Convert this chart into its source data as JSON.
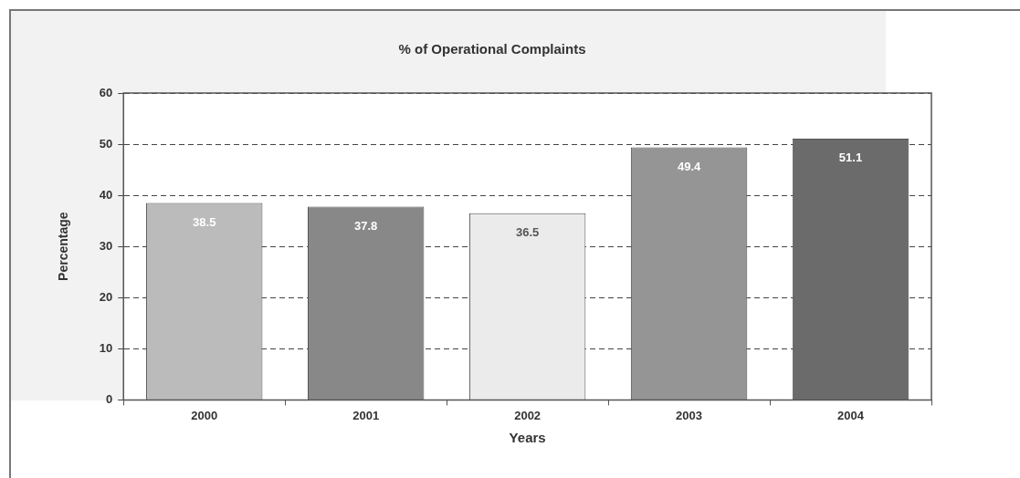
{
  "chart_data": {
    "type": "bar",
    "title": "% of Operational Complaints",
    "xlabel": "Years",
    "ylabel": "Percentage",
    "categories": [
      "2000",
      "2001",
      "2002",
      "2003",
      "2004"
    ],
    "values": [
      38.5,
      37.8,
      36.5,
      49.4,
      51.1
    ],
    "colors": [
      "#bbbbbb",
      "#888888",
      "#ebebeb",
      "#959595",
      "#6b6b6b"
    ],
    "ylim": [
      0,
      60
    ],
    "yticks": [
      0,
      10,
      20,
      30,
      40,
      50,
      60
    ],
    "grid": "y",
    "legend": false,
    "data_labels": true
  }
}
